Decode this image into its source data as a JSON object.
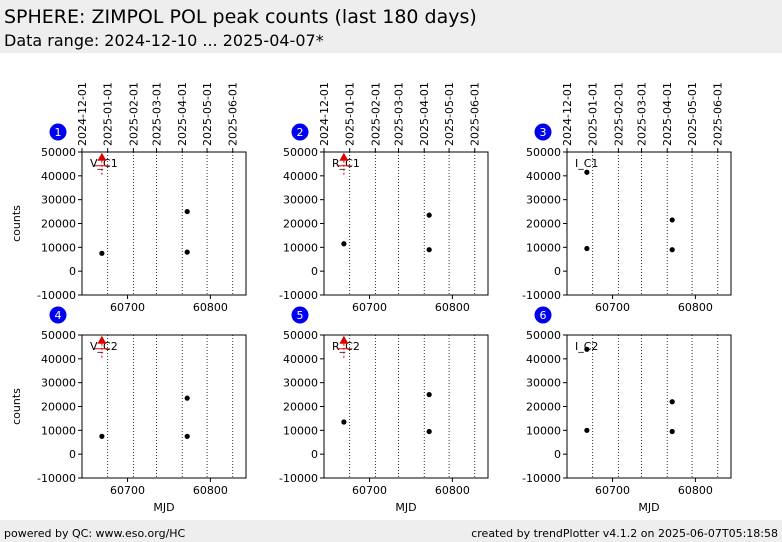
{
  "header": {
    "title": "SPHERE: ZIMPOL POL peak counts (last 180 days)",
    "subtitle": "Data range: 2024-12-10 ... 2025-04-07*"
  },
  "footer": {
    "left": "powered by QC: www.eso.org/HC",
    "right": "created by trendPlotter v4.1.2 on 2025-06-07T05:18:58"
  },
  "colors": {
    "header_bg": "#eeeeee",
    "badge": "#0000ee",
    "marker": "#000000",
    "limit": "#dd0000"
  },
  "chart_data": [
    {
      "type": "scatter",
      "badge": "1",
      "label": "V_C1",
      "ylabel": "counts",
      "xlabel": "",
      "xlim": [
        60645,
        60843
      ],
      "ylim": [
        -10000,
        50000
      ],
      "x_ticks": [
        60700,
        60800
      ],
      "y_ticks": [
        -10000,
        0,
        10000,
        20000,
        30000,
        40000,
        50000
      ],
      "date_ticks": [
        "2024-12-01",
        "2025-01-01",
        "2025-02-01",
        "2025-03-01",
        "2025-04-01",
        "2025-05-01",
        "2025-06-01"
      ],
      "points": [
        [
          60669,
          7500
        ],
        [
          60772,
          25000
        ],
        [
          60772,
          8000
        ]
      ],
      "upper_limits": [
        [
          60669,
          48000
        ]
      ]
    },
    {
      "type": "scatter",
      "badge": "2",
      "label": "R_C1",
      "ylabel": "",
      "xlabel": "",
      "xlim": [
        60645,
        60843
      ],
      "ylim": [
        -10000,
        50000
      ],
      "x_ticks": [
        60700,
        60800
      ],
      "y_ticks": [
        -10000,
        0,
        10000,
        20000,
        30000,
        40000,
        50000
      ],
      "date_ticks": [
        "2024-12-01",
        "2025-01-01",
        "2025-02-01",
        "2025-03-01",
        "2025-04-01",
        "2025-05-01",
        "2025-06-01"
      ],
      "points": [
        [
          60669,
          11500
        ],
        [
          60772,
          23500
        ],
        [
          60772,
          9000
        ]
      ],
      "upper_limits": [
        [
          60669,
          48000
        ]
      ]
    },
    {
      "type": "scatter",
      "badge": "3",
      "label": "I_C1",
      "ylabel": "",
      "xlabel": "",
      "xlim": [
        60645,
        60843
      ],
      "ylim": [
        -10000,
        50000
      ],
      "x_ticks": [
        60700,
        60800
      ],
      "y_ticks": [
        -10000,
        0,
        10000,
        20000,
        30000,
        40000,
        50000
      ],
      "date_ticks": [
        "2024-12-01",
        "2025-01-01",
        "2025-02-01",
        "2025-03-01",
        "2025-04-01",
        "2025-05-01",
        "2025-06-01"
      ],
      "points": [
        [
          60669,
          41500
        ],
        [
          60669,
          9500
        ],
        [
          60772,
          21500
        ],
        [
          60772,
          9000
        ]
      ],
      "upper_limits": []
    },
    {
      "type": "scatter",
      "badge": "4",
      "label": "V_C2",
      "ylabel": "counts",
      "xlabel": "MJD",
      "xlim": [
        60645,
        60843
      ],
      "ylim": [
        -10000,
        50000
      ],
      "x_ticks": [
        60700,
        60800
      ],
      "y_ticks": [
        -10000,
        0,
        10000,
        20000,
        30000,
        40000,
        50000
      ],
      "date_ticks": [],
      "points": [
        [
          60669,
          7500
        ],
        [
          60772,
          23500
        ],
        [
          60772,
          7500
        ]
      ],
      "upper_limits": [
        [
          60669,
          48000
        ]
      ]
    },
    {
      "type": "scatter",
      "badge": "5",
      "label": "R_C2",
      "ylabel": "",
      "xlabel": "MJD",
      "xlim": [
        60645,
        60843
      ],
      "ylim": [
        -10000,
        50000
      ],
      "x_ticks": [
        60700,
        60800
      ],
      "y_ticks": [
        -10000,
        0,
        10000,
        20000,
        30000,
        40000,
        50000
      ],
      "date_ticks": [],
      "points": [
        [
          60669,
          13500
        ],
        [
          60772,
          25000
        ],
        [
          60772,
          9500
        ]
      ],
      "upper_limits": [
        [
          60669,
          48000
        ]
      ]
    },
    {
      "type": "scatter",
      "badge": "6",
      "label": "I_C2",
      "ylabel": "",
      "xlabel": "MJD",
      "xlim": [
        60645,
        60843
      ],
      "ylim": [
        -10000,
        50000
      ],
      "x_ticks": [
        60700,
        60800
      ],
      "y_ticks": [
        -10000,
        0,
        10000,
        20000,
        30000,
        40000,
        50000
      ],
      "date_ticks": [],
      "points": [
        [
          60669,
          44000
        ],
        [
          60669,
          10000
        ],
        [
          60772,
          22000
        ],
        [
          60772,
          9500
        ]
      ],
      "upper_limits": []
    }
  ]
}
